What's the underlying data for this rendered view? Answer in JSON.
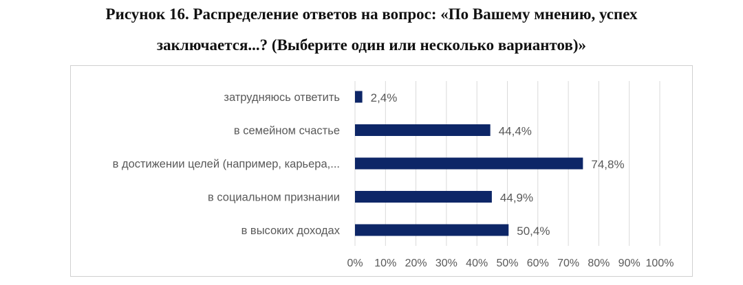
{
  "figure": {
    "caption_line1": "Рисунок 16. Распределение ответов на вопрос: «По Вашему мнению, успех",
    "caption_line2": "заключается...? (Выберите один или несколько вариантов)»"
  },
  "chart_data": {
    "type": "bar",
    "orientation": "horizontal",
    "categories": [
      "затрудняюсь ответить",
      "в семейном счастье",
      "в достижении целей (например, карьера,...",
      "в социальном признании",
      "в высоких доходах"
    ],
    "values": [
      2.4,
      44.4,
      74.8,
      44.9,
      50.4
    ],
    "value_labels": [
      "2,4%",
      "44,4%",
      "74,8%",
      "44,9%",
      "50,4%"
    ],
    "x_ticks": [
      "0%",
      "10%",
      "20%",
      "30%",
      "40%",
      "50%",
      "60%",
      "70%",
      "80%",
      "90%",
      "100%"
    ],
    "xlim": [
      0,
      100
    ],
    "grid": "vertical",
    "legend": "none",
    "bar_color": "#0d2667",
    "grid_color": "#d9d9d9",
    "text_color": "#595959"
  }
}
